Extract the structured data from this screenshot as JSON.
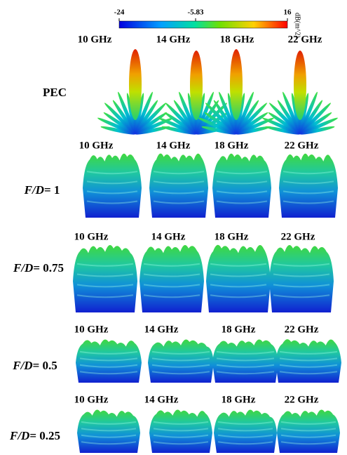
{
  "colorbar": {
    "min": -24,
    "max": 16,
    "ticks": [
      -24,
      -5.83,
      16
    ],
    "unit": "dB(m^2)"
  },
  "rows": [
    {
      "label": "PEC",
      "frequencies": [
        "10 GHz",
        "14 GHz",
        "18 GHz",
        "22 GHz"
      ]
    },
    {
      "label_italic": "F/D",
      "label": "= 1",
      "frequencies": [
        "10 GHz",
        "14 GHz",
        "18 GHz",
        "22 GHz"
      ]
    },
    {
      "label_italic": "F/D",
      "label": "= 0.75",
      "frequencies": [
        "10 GHz",
        "14 GHz",
        "18 GHz",
        "22 GHz"
      ]
    },
    {
      "label_italic": "F/D",
      "label": "= 0.5",
      "frequencies": [
        "10 GHz",
        "14 GHz",
        "18 GHz",
        "22 GHz"
      ]
    },
    {
      "label_italic": "F/D",
      "label": "= 0.25",
      "frequencies": [
        "10 GHz",
        "14 GHz",
        "18 GHz",
        "22 GHz"
      ]
    }
  ]
}
